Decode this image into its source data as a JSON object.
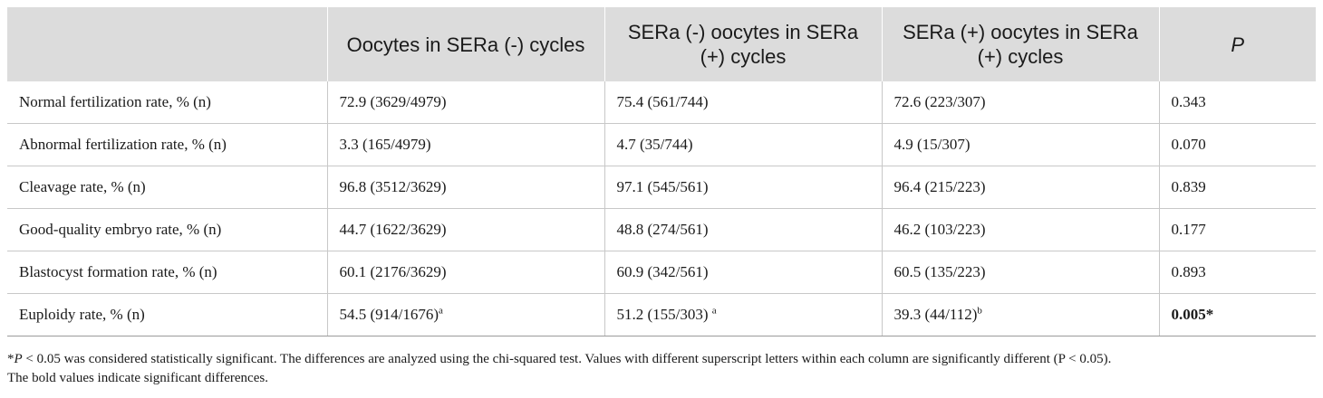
{
  "table": {
    "headers": [
      "",
      "Oocytes in SERa (-) cycles",
      "SERa (-) oocytes in SERa (+) cycles",
      "SERa (+) oocytes in SERa (+) cycles",
      "P"
    ],
    "rows": [
      {
        "label": "Normal fertilization rate, % (n)",
        "c1": "72.9 (3629/4979)",
        "c1_sup": "",
        "c2": "75.4 (561/744)",
        "c2_sup": "",
        "c3": "72.6 (223/307)",
        "c3_sup": "",
        "p": "0.343"
      },
      {
        "label": "Abnormal fertilization rate, % (n)",
        "c1": "3.3 (165/4979)",
        "c1_sup": "",
        "c2": "4.7 (35/744)",
        "c2_sup": "",
        "c3": "4.9 (15/307)",
        "c3_sup": "",
        "p": "0.070"
      },
      {
        "label": "Cleavage rate, % (n)",
        "c1": "96.8 (3512/3629)",
        "c1_sup": "",
        "c2": "97.1 (545/561)",
        "c2_sup": "",
        "c3": "96.4 (215/223)",
        "c3_sup": "",
        "p": "0.839"
      },
      {
        "label": "Good-quality embryo rate, % (n)",
        "c1": "44.7 (1622/3629)",
        "c1_sup": "",
        "c2": "48.8 (274/561)",
        "c2_sup": "",
        "c3": "46.2 (103/223)",
        "c3_sup": "",
        "p": "0.177"
      },
      {
        "label": "Blastocyst formation rate, % (n)",
        "c1": "60.1 (2176/3629)",
        "c1_sup": "",
        "c2": "60.9 (342/561)",
        "c2_sup": "",
        "c3": "60.5 (135/223)",
        "c3_sup": "",
        "p": "0.893"
      },
      {
        "label": "Euploidy rate, % (n)",
        "c1": "54.5 (914/1676)",
        "c1_sup": "a",
        "c2": "51.2 (155/303) ",
        "c2_sup": "a",
        "c3": "39.3 (44/112)",
        "c3_sup": "b",
        "p": "0.005*"
      }
    ]
  },
  "footnote": {
    "star": "*",
    "p_symbol": "P",
    "line1_rest": " < 0.05 was considered statistically significant. The differences are analyzed using the chi-squared test. Values with different superscript letters within each column are significantly different (P < 0.05).",
    "line2": "The bold values indicate significant differences."
  }
}
